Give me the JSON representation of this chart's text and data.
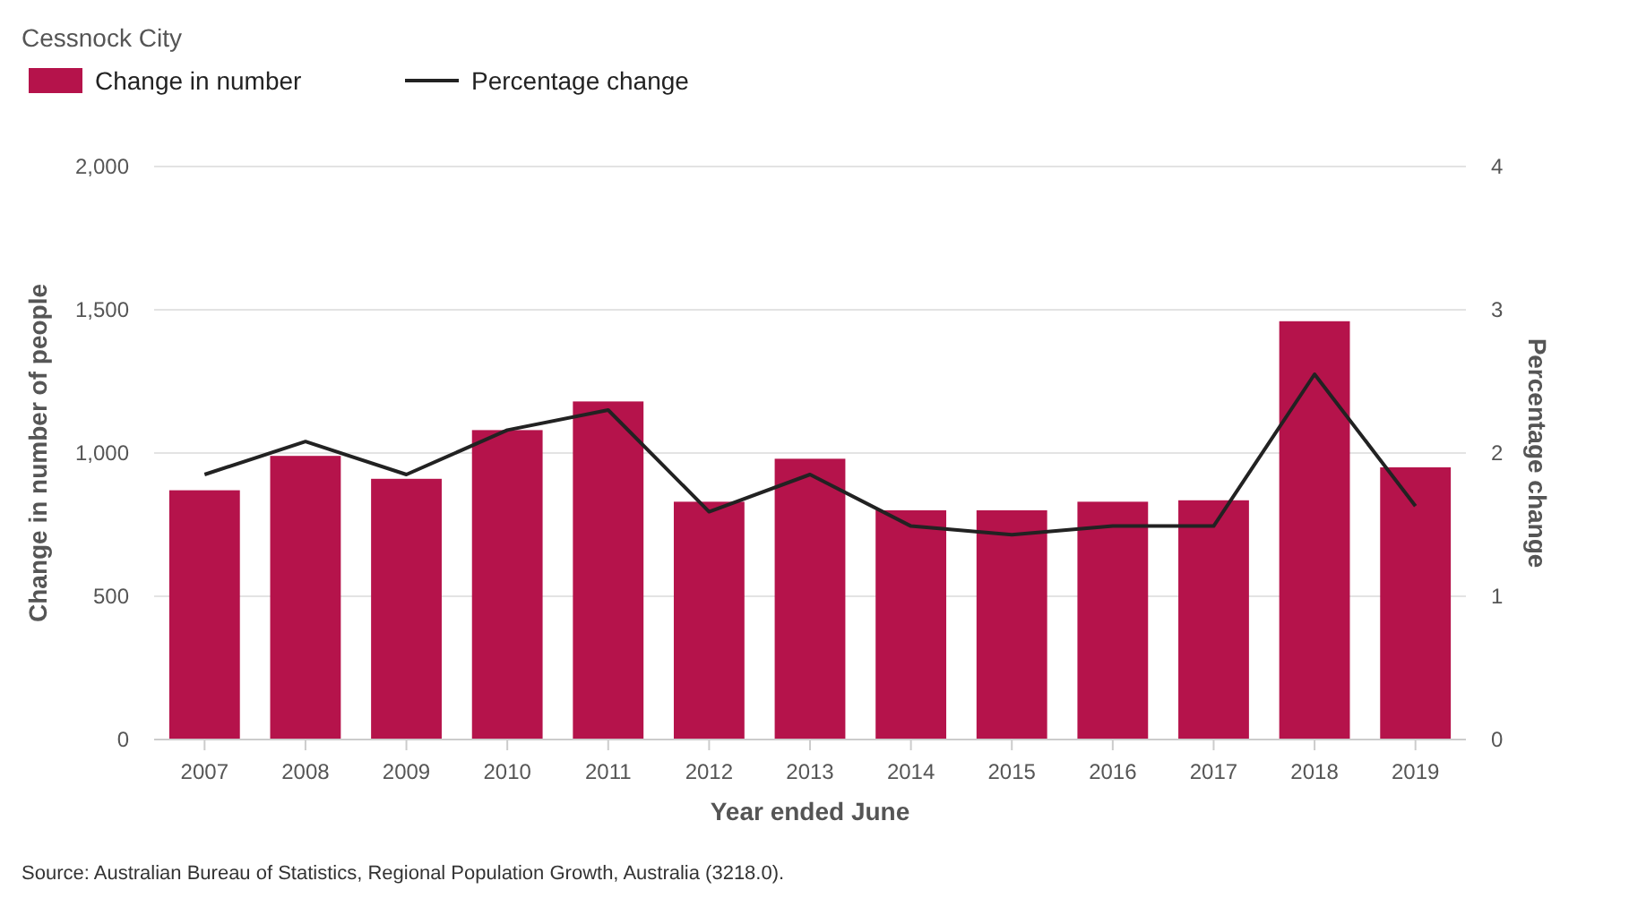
{
  "chart_data": {
    "type": "bar",
    "title": "Cessnock City",
    "xlabel": "Year ended June",
    "ylabel": "Change in number of people",
    "y2label": "Percentage change",
    "categories": [
      "2007",
      "2008",
      "2009",
      "2010",
      "2011",
      "2012",
      "2013",
      "2014",
      "2015",
      "2016",
      "2017",
      "2018",
      "2019"
    ],
    "series": [
      {
        "name": "Change in number",
        "color": "#b5134b",
        "values": [
          870,
          990,
          910,
          1080,
          1180,
          830,
          980,
          800,
          800,
          830,
          835,
          1460,
          950
        ]
      },
      {
        "name": "Percentage change",
        "type": "line",
        "axis": "y2",
        "color": "#222222",
        "values": [
          1.85,
          2.08,
          1.85,
          2.16,
          2.3,
          1.59,
          1.85,
          1.49,
          1.43,
          1.49,
          1.49,
          2.55,
          1.63
        ]
      }
    ],
    "ylim": [
      0,
      2000
    ],
    "yticks": [
      0,
      {
        "value": 500,
        "label": "500"
      },
      {
        "value": 1000,
        "label": "1,000"
      },
      {
        "value": 1500,
        "label": "1,500"
      },
      {
        "value": 2000,
        "label": "2,000"
      }
    ],
    "y2lim": [
      0,
      4
    ],
    "y2ticks": [
      0,
      1,
      2,
      3,
      4
    ],
    "grid": "y",
    "legend": "top left",
    "annotations": [
      "Source: Australian Bureau of Statistics, Regional Population Growth, Australia (3218.0)."
    ]
  }
}
